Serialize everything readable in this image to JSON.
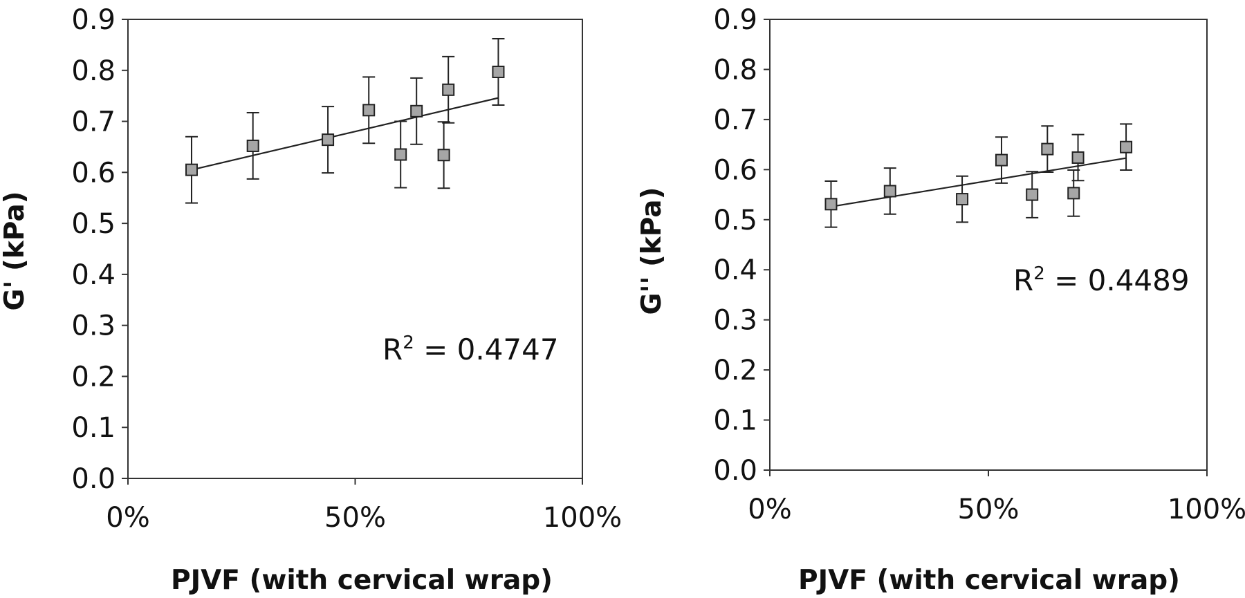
{
  "chart_data": [
    {
      "type": "scatter",
      "title": "",
      "xlabel": "PJVF (with cervical wrap)",
      "ylabel": "G' (kPa)",
      "xlim": [
        0,
        1
      ],
      "ylim": [
        0,
        0.9
      ],
      "x_ticks": [
        "0%",
        "50%",
        "100%"
      ],
      "y_ticks": [
        "0.0",
        "0.1",
        "0.2",
        "0.3",
        "0.4",
        "0.5",
        "0.6",
        "0.7",
        "0.8",
        "0.9"
      ],
      "grid": false,
      "points": [
        {
          "x": 0.14,
          "y": 0.605,
          "err": 0.065
        },
        {
          "x": 0.275,
          "y": 0.652,
          "err": 0.065
        },
        {
          "x": 0.44,
          "y": 0.664,
          "err": 0.065
        },
        {
          "x": 0.53,
          "y": 0.722,
          "err": 0.065
        },
        {
          "x": 0.6,
          "y": 0.635,
          "err": 0.065
        },
        {
          "x": 0.635,
          "y": 0.72,
          "err": 0.065
        },
        {
          "x": 0.695,
          "y": 0.634,
          "err": 0.065
        },
        {
          "x": 0.705,
          "y": 0.762,
          "err": 0.065
        },
        {
          "x": 0.815,
          "y": 0.797,
          "err": 0.065
        }
      ],
      "trendline": {
        "x": [
          0.14,
          0.815
        ],
        "y": [
          0.605,
          0.746
        ]
      },
      "annotation": {
        "base": "R",
        "sup": "2",
        "rest": " = 0.4747"
      },
      "color": "#a6a6a6"
    },
    {
      "type": "scatter",
      "title": "",
      "xlabel": "PJVF (with cervical wrap)",
      "ylabel": "G'' (kPa)",
      "xlim": [
        0,
        1
      ],
      "ylim": [
        0,
        0.9
      ],
      "x_ticks": [
        "0%",
        "50%",
        "100%"
      ],
      "y_ticks": [
        "0.0",
        "0.1",
        "0.2",
        "0.3",
        "0.4",
        "0.5",
        "0.6",
        "0.7",
        "0.8",
        "0.9"
      ],
      "grid": false,
      "points": [
        {
          "x": 0.14,
          "y": 0.531,
          "err": 0.046
        },
        {
          "x": 0.275,
          "y": 0.557,
          "err": 0.046
        },
        {
          "x": 0.44,
          "y": 0.541,
          "err": 0.046
        },
        {
          "x": 0.53,
          "y": 0.619,
          "err": 0.046
        },
        {
          "x": 0.6,
          "y": 0.55,
          "err": 0.046
        },
        {
          "x": 0.635,
          "y": 0.641,
          "err": 0.046
        },
        {
          "x": 0.695,
          "y": 0.553,
          "err": 0.046
        },
        {
          "x": 0.705,
          "y": 0.624,
          "err": 0.046
        },
        {
          "x": 0.815,
          "y": 0.645,
          "err": 0.046
        }
      ],
      "trendline": {
        "x": [
          0.14,
          0.815
        ],
        "y": [
          0.526,
          0.623
        ]
      },
      "annotation": {
        "base": "R",
        "sup": "2",
        "rest": " = 0.4489"
      },
      "color": "#a6a6a6"
    }
  ]
}
